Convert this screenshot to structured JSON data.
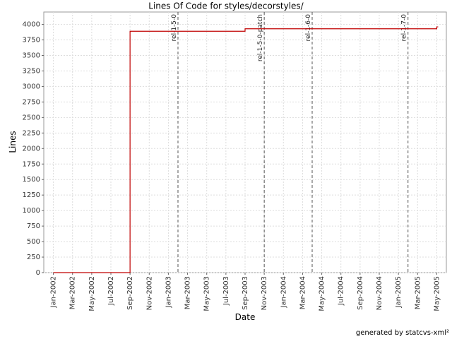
{
  "chart_data": {
    "type": "step-line",
    "title": "Lines Of Code for styles/decorstyles/",
    "x_label": "Date",
    "y_label": "Lines",
    "x": [
      "2002-01",
      "2002-09",
      "2003-09",
      "2005-05"
    ],
    "series": [
      {
        "color": "#c00000",
        "values": [
          0,
          3890,
          3930,
          3960
        ]
      }
    ],
    "markers": [
      {
        "x": "2003-02",
        "label": "rel-1-5-0"
      },
      {
        "x": "2003-11",
        "label": "rel-1-5-0-patch"
      },
      {
        "x": "2004-04",
        "label": "rel-1-6-0"
      },
      {
        "x": "2005-02",
        "label": "rel-1-7-0"
      }
    ],
    "xlim": [
      "2001-12",
      "2005-06"
    ],
    "xticks": [
      {
        "value": "2002-01",
        "label": "Jan-2002"
      },
      {
        "value": "2002-03",
        "label": "Mar-2002"
      },
      {
        "value": "2002-05",
        "label": "May-2002"
      },
      {
        "value": "2002-07",
        "label": "Jul-2002"
      },
      {
        "value": "2002-09",
        "label": "Sep-2002"
      },
      {
        "value": "2002-11",
        "label": "Nov-2002"
      },
      {
        "value": "2003-01",
        "label": "Jan-2003"
      },
      {
        "value": "2003-03",
        "label": "Mar-2003"
      },
      {
        "value": "2003-05",
        "label": "May-2003"
      },
      {
        "value": "2003-07",
        "label": "Jul-2003"
      },
      {
        "value": "2003-09",
        "label": "Sep-2003"
      },
      {
        "value": "2003-11",
        "label": "Nov-2003"
      },
      {
        "value": "2004-01",
        "label": "Jan-2004"
      },
      {
        "value": "2004-03",
        "label": "Mar-2004"
      },
      {
        "value": "2004-05",
        "label": "May-2004"
      },
      {
        "value": "2004-07",
        "label": "Jul-2004"
      },
      {
        "value": "2004-09",
        "label": "Sep-2004"
      },
      {
        "value": "2004-11",
        "label": "Nov-2004"
      },
      {
        "value": "2005-01",
        "label": "Jan-2005"
      },
      {
        "value": "2005-03",
        "label": "Mar-2005"
      },
      {
        "value": "2005-05",
        "label": "May-2005"
      }
    ],
    "ylim": [
      0,
      4200
    ],
    "yticks": [
      0,
      250,
      500,
      750,
      1000,
      1250,
      1500,
      1750,
      2000,
      2250,
      2500,
      2750,
      3000,
      3250,
      3500,
      3750,
      4000
    ],
    "grid": true,
    "footer": "generated by statcvs-xml²"
  }
}
